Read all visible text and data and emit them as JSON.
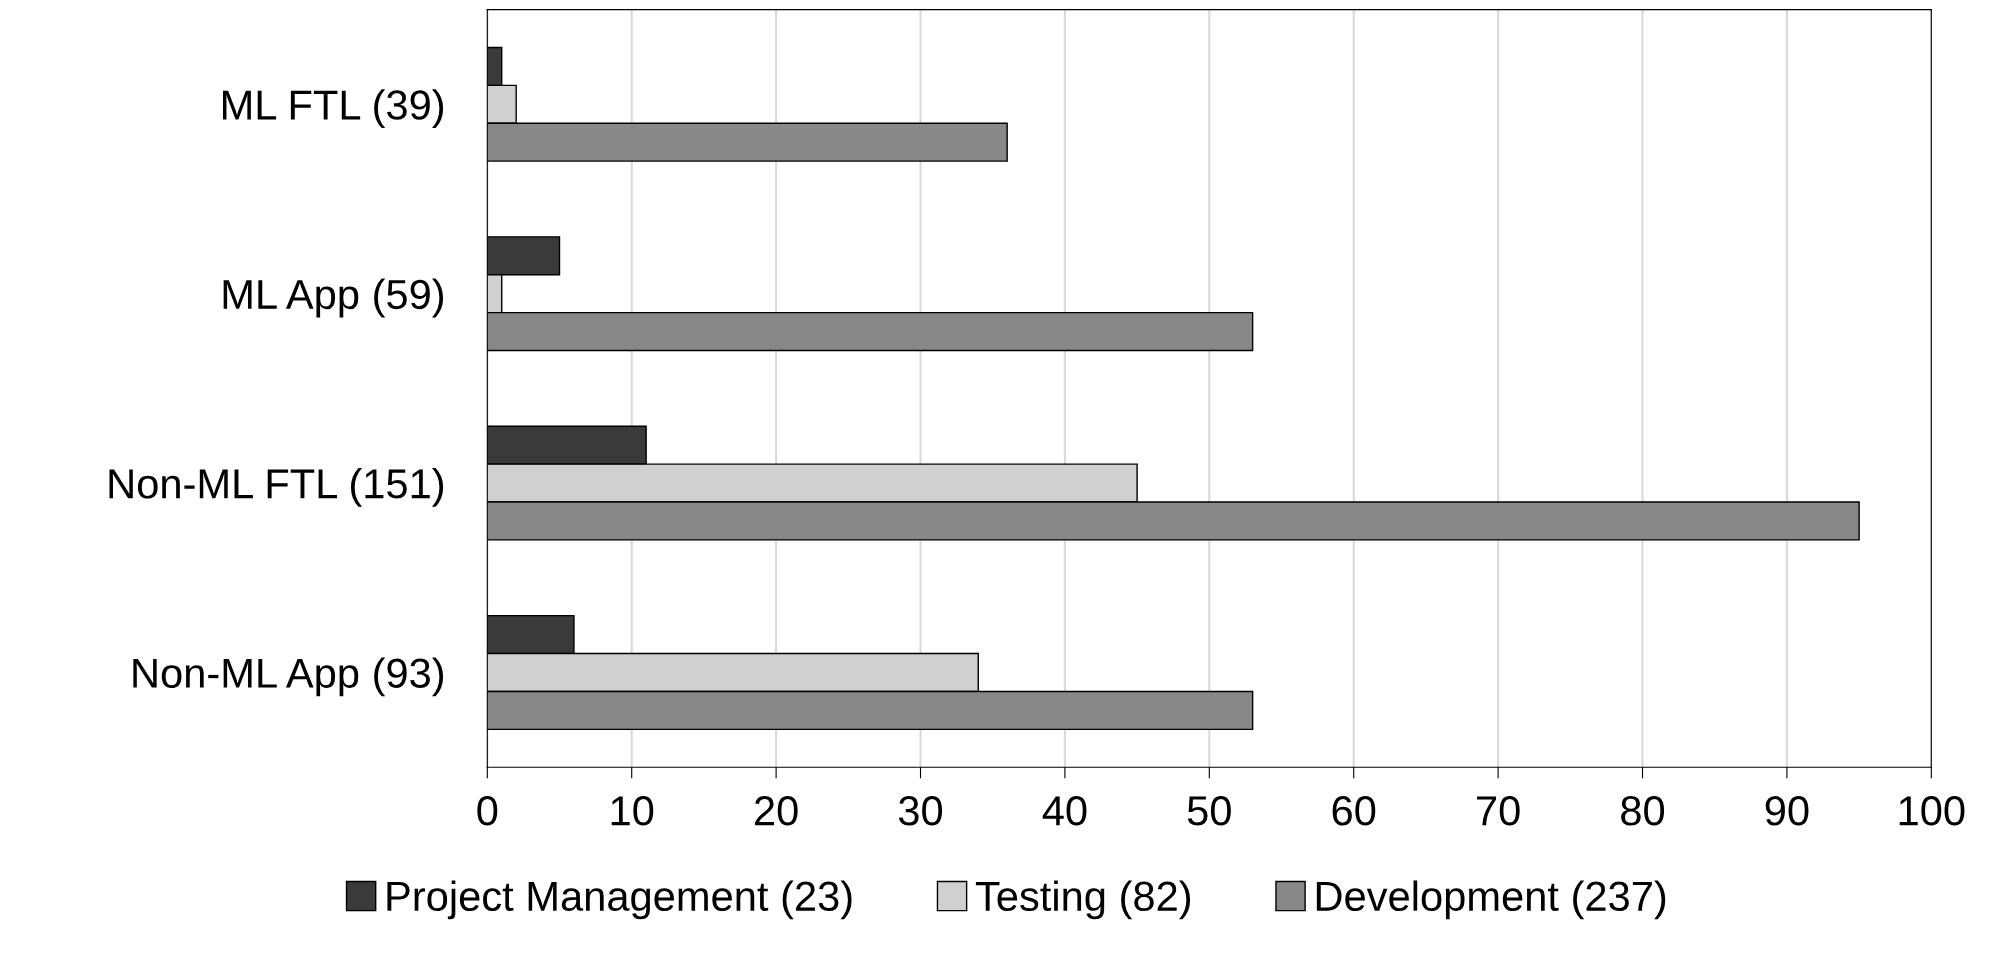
{
  "chart_data": {
    "type": "bar",
    "orientation": "horizontal",
    "categories": [
      "ML FTL (39)",
      "ML App (59)",
      "Non-ML FTL (151)",
      "Non-ML App (93)"
    ],
    "series": [
      {
        "name": "Project Management (23)",
        "color": "#3a3a3a",
        "values": [
          1,
          5,
          11,
          6
        ]
      },
      {
        "name": "Testing (82)",
        "color": "#d0d0d0",
        "values": [
          2,
          1,
          45,
          34
        ]
      },
      {
        "name": "Development (237)",
        "color": "#888888",
        "values": [
          36,
          53,
          95,
          53
        ]
      }
    ],
    "xlim": [
      0,
      100
    ],
    "xticks": [
      0,
      10,
      20,
      30,
      40,
      50,
      60,
      70,
      80,
      90,
      100
    ],
    "grid": "x",
    "legend": "bottom"
  }
}
